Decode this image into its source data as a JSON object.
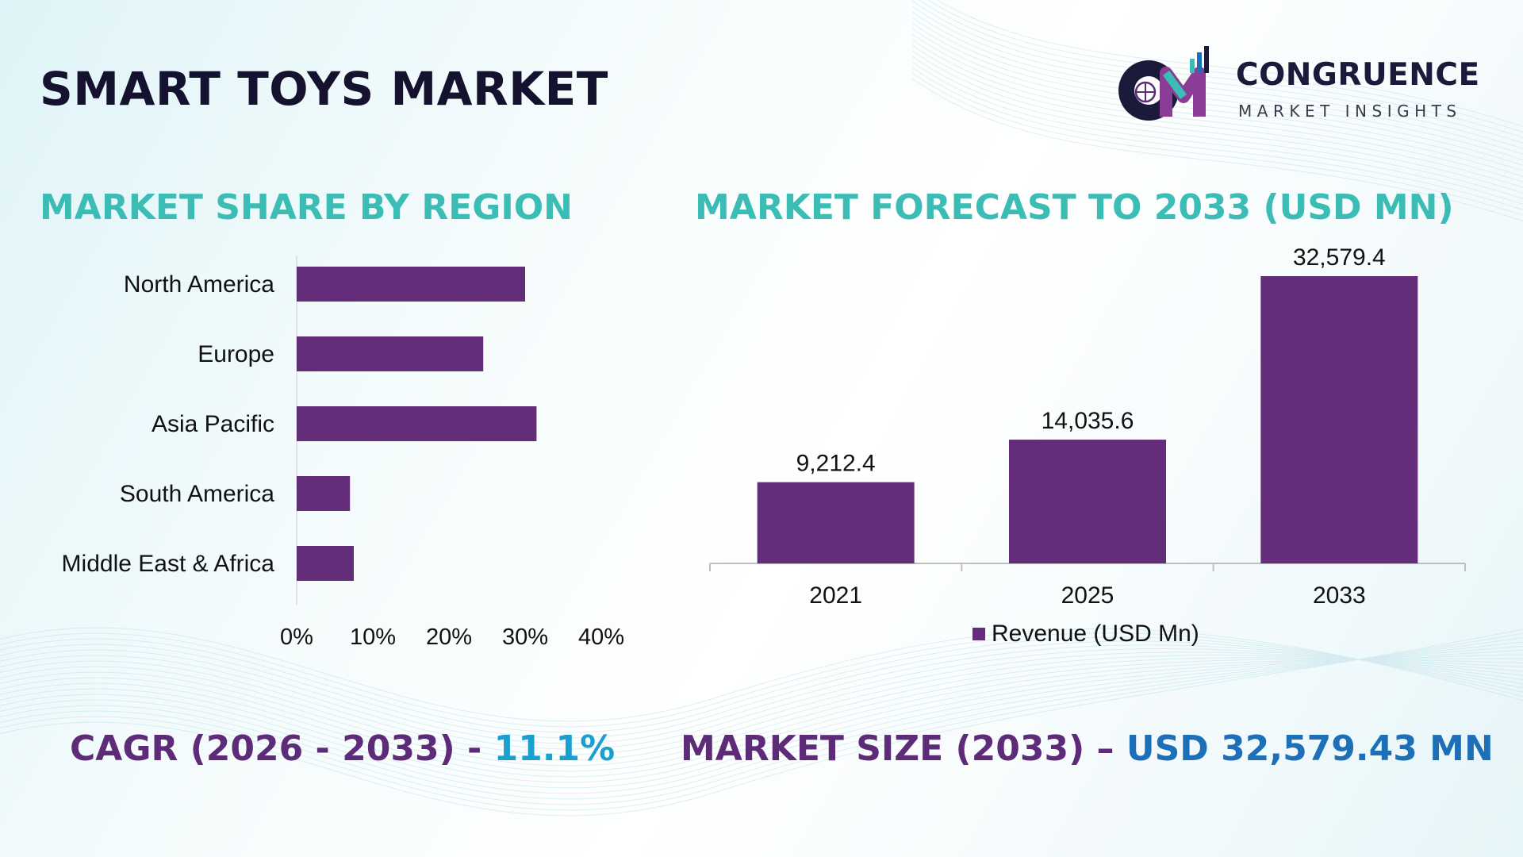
{
  "header": {
    "title": "SMART TOYS MARKET"
  },
  "logo": {
    "name": "CONGRUENCE",
    "tagline": "MARKET INSIGHTS"
  },
  "colors": {
    "bar": "#632d79",
    "section_title": "#3bbcb4",
    "title": "#14122e",
    "bottom_label": "#5e2b78",
    "cagr_value": "#1aa0cf",
    "size_value": "#1d6fb8"
  },
  "chart_data": [
    {
      "type": "bar",
      "orientation": "horizontal",
      "title": "MARKET SHARE BY REGION",
      "categories": [
        "North America",
        "Europe",
        "Asia Pacific",
        "South America",
        "Middle East & Africa"
      ],
      "values": [
        30,
        24.5,
        31.5,
        7,
        7.5
      ],
      "xticks": [
        "0%",
        "10%",
        "20%",
        "30%",
        "40%"
      ],
      "xlim": [
        0,
        40
      ],
      "grid": false
    },
    {
      "type": "bar",
      "orientation": "vertical",
      "title": "MARKET FORECAST TO 2033 (USD MN)",
      "categories": [
        "2021",
        "2025",
        "2033"
      ],
      "values": [
        9212.4,
        14035.6,
        32579.4
      ],
      "data_labels": [
        "9,212.4",
        "14,035.6",
        "32,579.4"
      ],
      "series": [
        {
          "name": "Revenue (USD Mn)",
          "values": [
            9212.4,
            14035.6,
            32579.4
          ]
        }
      ],
      "legend": "bottom",
      "grid": false
    }
  ],
  "footer": {
    "cagr_label": "CAGR (2026 - 2033) - ",
    "cagr_value": "11.1%",
    "size_label": "MARKET SIZE (2033) – ",
    "size_value": "USD 32,579.43 MN"
  }
}
